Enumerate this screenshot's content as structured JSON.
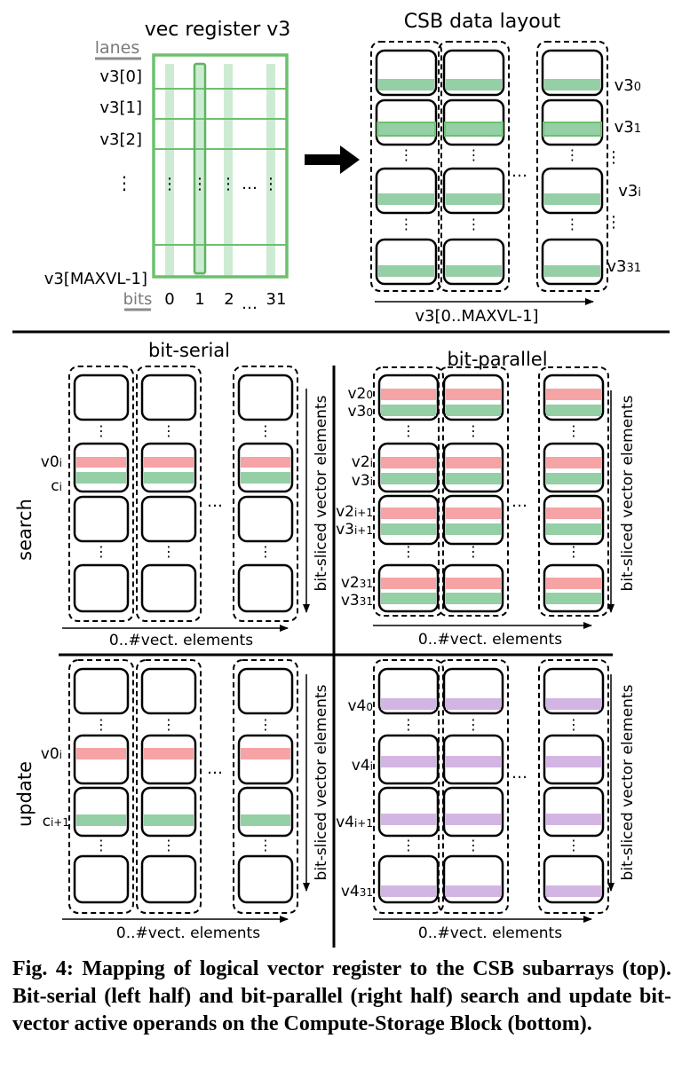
{
  "top": {
    "vec_title": "vec register v3",
    "lanes_label": "lanes",
    "lane_labels": [
      "v3[0]",
      "v3[1]",
      "v3[2]",
      "⋮",
      "v3[MAXVL-1]"
    ],
    "bits_label": "bits",
    "bit_ticks": [
      "0",
      "1",
      "2",
      "…",
      "31"
    ],
    "csb_title": "CSB data layout",
    "csb_row_labels": [
      {
        "base": "v3",
        "sub": "0"
      },
      {
        "base": "v3",
        "sub": "1"
      },
      {
        "base": "⋮",
        "sub": ""
      },
      {
        "base": "v3",
        "sub": "i"
      },
      {
        "base": "⋮",
        "sub": ""
      },
      {
        "base": "v3",
        "sub": "31"
      }
    ],
    "csb_axis_label": "v3[0..MAXVL-1]",
    "ellipsis": "…"
  },
  "bottom": {
    "serial_title": "bit-serial",
    "parallel_title": "bit-parallel",
    "search_label": "search",
    "update_label": "update",
    "axis_label": "0..#vect. elements",
    "side_label": "bit-sliced vector elements",
    "ellipsis": "…",
    "search_serial_labels": [
      {
        "base": "v0",
        "sub": "i"
      },
      {
        "base": "c",
        "sub": "i"
      }
    ],
    "search_parallel_labels": [
      {
        "base": "v2",
        "sub": "0"
      },
      {
        "base": "v3",
        "sub": "0"
      },
      {
        "base": "v2",
        "sub": "i"
      },
      {
        "base": "v3",
        "sub": "i"
      },
      {
        "base": "v2",
        "sub": "i+1"
      },
      {
        "base": "v3",
        "sub": "i+1"
      },
      {
        "base": "v2",
        "sub": "31"
      },
      {
        "base": "v3",
        "sub": "31"
      }
    ],
    "update_serial_labels": [
      {
        "base": "v0",
        "sub": "i"
      },
      {
        "base": "c",
        "sub": "i+1"
      }
    ],
    "update_parallel_labels": [
      {
        "base": "v4",
        "sub": "0"
      },
      {
        "base": "v4",
        "sub": "i"
      },
      {
        "base": "v4",
        "sub": "i+1"
      },
      {
        "base": "v4",
        "sub": "31"
      }
    ]
  },
  "colors": {
    "green": "#94cfa5",
    "light_green": "#cdebd3",
    "red": "#f6a3a6",
    "purple": "#d3b5e3",
    "register_border": "#6dc06e"
  },
  "caption": "Fig. 4: Mapping of logical vector register to the CSB subarrays (top). Bit-serial (left half) and bit-parallel (right half) search and update bit-vector active operands on the Compute-Storage Block (bottom)."
}
